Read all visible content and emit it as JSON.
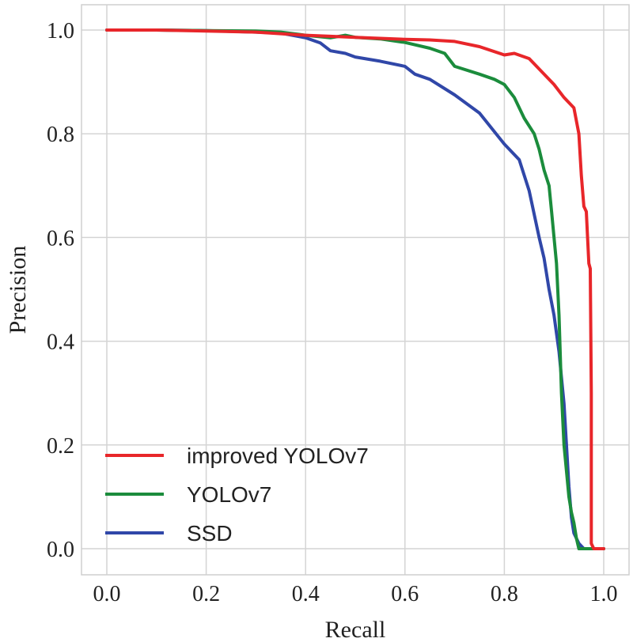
{
  "chart_data": {
    "type": "line",
    "title": "",
    "xlabel": "Recall",
    "ylabel": "Precision",
    "xlim": [
      -0.05,
      1.05
    ],
    "ylim": [
      -0.05,
      1.05
    ],
    "xticks": [
      0.0,
      0.2,
      0.4,
      0.6,
      0.8,
      1.0
    ],
    "yticks": [
      0.0,
      0.2,
      0.4,
      0.6,
      0.8,
      1.0
    ],
    "xtick_labels": [
      "0.0",
      "0.2",
      "0.4",
      "0.6",
      "0.8",
      "1.0"
    ],
    "ytick_labels": [
      "0.0",
      "0.2",
      "0.4",
      "0.6",
      "0.8",
      "1.0"
    ],
    "grid": true,
    "legend_position": "bottom-left",
    "series": [
      {
        "name": "improved YOLOv7",
        "color": "#e8262a",
        "x": [
          0.0,
          0.1,
          0.2,
          0.3,
          0.4,
          0.45,
          0.5,
          0.55,
          0.6,
          0.65,
          0.7,
          0.75,
          0.8,
          0.82,
          0.85,
          0.88,
          0.9,
          0.92,
          0.94,
          0.95,
          0.955,
          0.96,
          0.965,
          0.97,
          0.973,
          0.975,
          0.975,
          0.98,
          1.0
        ],
        "y": [
          1.0,
          1.0,
          0.998,
          0.996,
          0.99,
          0.988,
          0.986,
          0.984,
          0.982,
          0.981,
          0.978,
          0.968,
          0.952,
          0.955,
          0.945,
          0.915,
          0.895,
          0.87,
          0.85,
          0.8,
          0.72,
          0.66,
          0.65,
          0.55,
          0.54,
          0.3,
          0.01,
          0.0,
          0.0
        ]
      },
      {
        "name": "YOLOv7",
        "color": "#1b8c3c",
        "x": [
          0.0,
          0.1,
          0.2,
          0.3,
          0.35,
          0.4,
          0.45,
          0.48,
          0.5,
          0.55,
          0.6,
          0.65,
          0.68,
          0.7,
          0.75,
          0.78,
          0.8,
          0.82,
          0.84,
          0.86,
          0.87,
          0.88,
          0.89,
          0.895,
          0.9,
          0.905,
          0.91,
          0.915,
          0.92,
          0.925,
          0.93,
          0.935,
          0.94,
          0.945,
          0.95,
          0.97,
          1.0
        ],
        "y": [
          1.0,
          1.0,
          0.999,
          0.998,
          0.996,
          0.99,
          0.985,
          0.99,
          0.986,
          0.983,
          0.976,
          0.965,
          0.955,
          0.93,
          0.915,
          0.905,
          0.895,
          0.87,
          0.83,
          0.8,
          0.77,
          0.73,
          0.7,
          0.65,
          0.6,
          0.55,
          0.45,
          0.3,
          0.2,
          0.15,
          0.1,
          0.07,
          0.05,
          0.02,
          0.0,
          0.0,
          0.0
        ]
      },
      {
        "name": "SSD",
        "color": "#3047a8",
        "x": [
          0.0,
          0.1,
          0.2,
          0.3,
          0.35,
          0.4,
          0.43,
          0.45,
          0.48,
          0.5,
          0.55,
          0.6,
          0.62,
          0.65,
          0.7,
          0.75,
          0.8,
          0.83,
          0.85,
          0.87,
          0.88,
          0.89,
          0.9,
          0.91,
          0.915,
          0.92,
          0.925,
          0.93,
          0.935,
          0.94,
          0.95,
          0.96,
          0.97,
          1.0
        ],
        "y": [
          1.0,
          1.0,
          0.999,
          0.996,
          0.994,
          0.985,
          0.975,
          0.96,
          0.955,
          0.948,
          0.94,
          0.93,
          0.915,
          0.905,
          0.875,
          0.84,
          0.78,
          0.75,
          0.69,
          0.6,
          0.56,
          0.5,
          0.45,
          0.38,
          0.33,
          0.28,
          0.2,
          0.12,
          0.06,
          0.03,
          0.01,
          0.0,
          0.0,
          0.0
        ]
      }
    ]
  }
}
